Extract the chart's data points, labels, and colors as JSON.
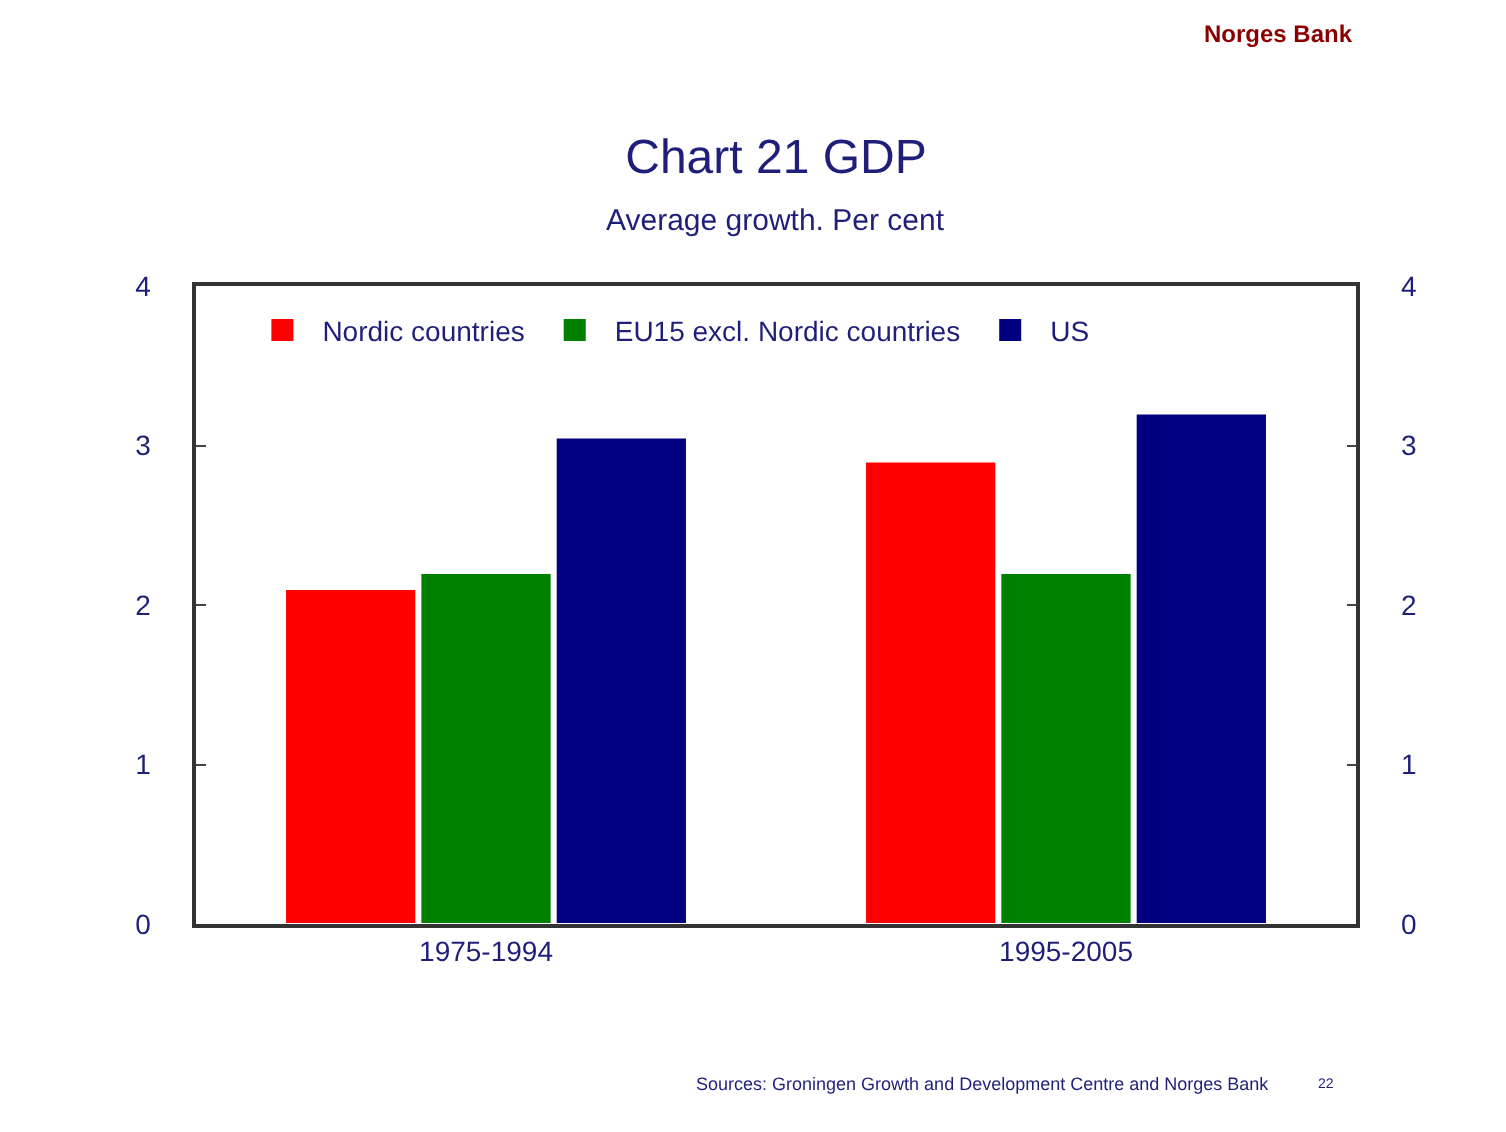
{
  "chart_data": {
    "type": "bar",
    "title": "Chart 21 GDP",
    "subtitle": "Average growth. Per cent",
    "categories": [
      "1975-1994",
      "1995-2005"
    ],
    "series": [
      {
        "name": "Nordic countries",
        "color": "#ff0000",
        "values": [
          2.1,
          2.9
        ]
      },
      {
        "name": "EU15 excl. Nordic countries",
        "color": "#008000",
        "values": [
          2.2,
          2.2
        ]
      },
      {
        "name": "US",
        "color": "#000080",
        "values": [
          3.05,
          3.2
        ]
      }
    ],
    "ylim": [
      0,
      4
    ],
    "yticks": [
      0,
      1,
      2,
      3,
      4
    ],
    "y2lim": [
      0,
      4
    ],
    "y2ticks": [
      0,
      1,
      2,
      3,
      4
    ],
    "grid": false,
    "legend": "top",
    "annotations": [
      "Norges Bank",
      "Sources: Groningen Growth and Development Centre and Norges Bank",
      "22"
    ]
  }
}
